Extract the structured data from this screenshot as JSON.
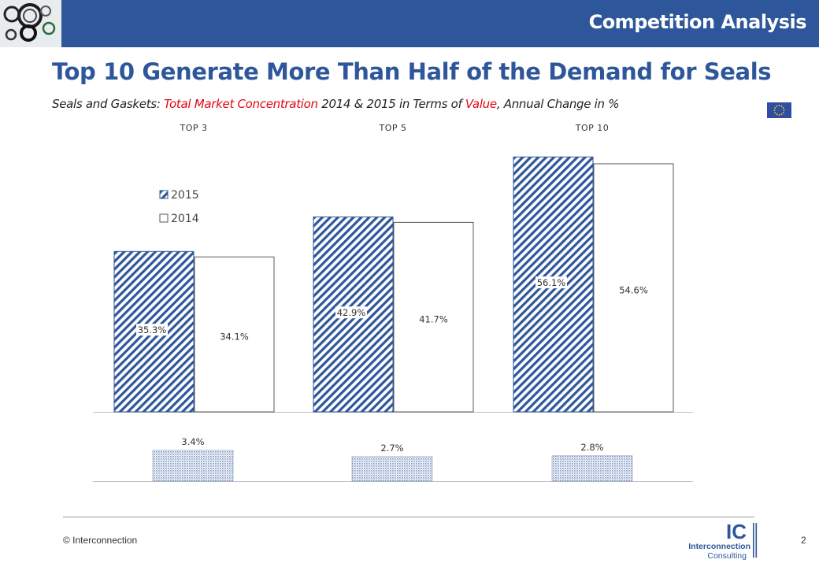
{
  "header": {
    "section_title": "Competition Analysis"
  },
  "slide": {
    "title": "Top 10 Generate More Than Half of the Demand for Seals",
    "subtitle_parts": {
      "p1": "Seals and Gaskets: ",
      "p2": "Total Market Concentration",
      "p3": " 2014 & 2015 in Terms of ",
      "p4": "Value",
      "p5": ", Annual Change in %"
    }
  },
  "footer": {
    "copyright": "© Interconnection",
    "page_number": "2",
    "logo_letters": "IC",
    "logo_line1": "Interconnection",
    "logo_line2": "Consulting"
  },
  "colors": {
    "brand_blue": "#2e569b",
    "accent_red": "#e30613",
    "hatch_blue": "#2e569b",
    "change_blue": "#7f96c2"
  },
  "chart_data": [
    {
      "type": "bar",
      "categories": [
        "TOP 3",
        "TOP 5",
        "TOP 10"
      ],
      "series": [
        {
          "name": "2015",
          "values": [
            35.3,
            42.9,
            56.1
          ],
          "labels": [
            "35.3%",
            "42.9%",
            "56.1%"
          ]
        },
        {
          "name": "2014",
          "values": [
            34.1,
            41.7,
            54.6
          ],
          "labels": [
            "34.1%",
            "41.7%",
            "54.6%"
          ]
        }
      ],
      "ylim": [
        0,
        60
      ],
      "legend": "left"
    },
    {
      "type": "bar",
      "categories": [
        "TOP 3",
        "TOP 5",
        "TOP 10"
      ],
      "values": [
        3.4,
        2.7,
        2.8
      ],
      "labels": [
        "3.4%",
        "2.7%",
        "2.8%"
      ],
      "ylim": [
        0,
        5.5
      ]
    }
  ]
}
